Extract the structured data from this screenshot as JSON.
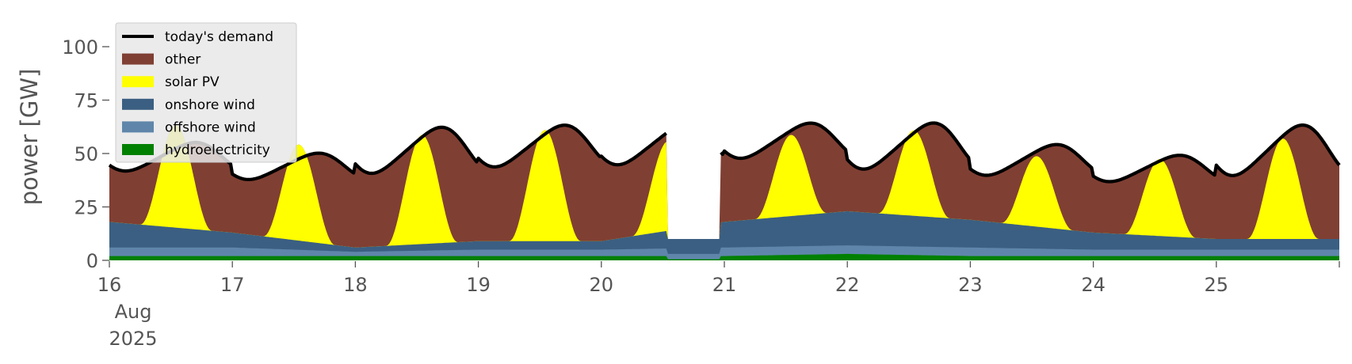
{
  "chart_data": {
    "type": "area",
    "title": "",
    "xlabel": "",
    "ylabel": "power [GW]",
    "ylim": [
      0,
      120
    ],
    "xlim_days": [
      16,
      26
    ],
    "x_unit": "date (Aug 2025), fractional day",
    "yticks": [
      0,
      25,
      50,
      75,
      100
    ],
    "ytick_labels": [
      "0",
      "25",
      "50",
      "75",
      "100"
    ],
    "xticks": [
      16,
      17,
      18,
      19,
      20,
      21,
      22,
      23,
      24,
      25
    ],
    "xtick_labels": [
      "16",
      "17",
      "18",
      "19",
      "20",
      "21",
      "22",
      "23",
      "24",
      "25"
    ],
    "xtick_first_extra_lines": [
      "Aug",
      "2025"
    ],
    "grid": false,
    "legend_position": "top-left",
    "colors": {
      "demand": "#000000",
      "other": "#803f33",
      "solar": "#ffff00",
      "onshore": "#3b5f82",
      "offshore": "#5f86aa",
      "hydro": "#008000",
      "plot_background": "#ffffff",
      "legend_background": "#e8e8e8"
    },
    "series": [
      {
        "name": "today's demand",
        "type": "line"
      },
      {
        "name": "other",
        "type": "area"
      },
      {
        "name": "solar PV",
        "type": "area"
      },
      {
        "name": "onshore wind",
        "type": "area"
      },
      {
        "name": "offshore wind",
        "type": "area"
      },
      {
        "name": "hydroelectricity",
        "type": "area"
      }
    ],
    "gap": [
      20.53,
      20.97
    ],
    "days": [
      {
        "day": 16,
        "demand_min": 42,
        "demand_max": 55,
        "solar_peak": 48,
        "onshore": 12,
        "offshore": 4,
        "hydro": 2
      },
      {
        "day": 17,
        "demand_min": 38,
        "demand_max": 50,
        "solar_peak": 45,
        "onshore": 7,
        "offshore": 4,
        "hydro": 2
      },
      {
        "day": 18,
        "demand_min": 41,
        "demand_max": 62,
        "solar_peak": 51,
        "onshore": 2,
        "offshore": 2,
        "hydro": 2
      },
      {
        "day": 19,
        "demand_min": 44,
        "demand_max": 63,
        "solar_peak": 52,
        "onshore": 4,
        "offshore": 3,
        "hydro": 2
      },
      {
        "day": 20,
        "demand_min": 45,
        "demand_max": 64,
        "solar_peak": 42,
        "onshore": 4,
        "offshore": 3,
        "hydro": 2
      },
      {
        "day": 21,
        "demand_min": 48,
        "demand_max": 64,
        "solar_peak": 38,
        "onshore": 12,
        "offshore": 4,
        "hydro": 2
      },
      {
        "day": 22,
        "demand_min": 43,
        "demand_max": 64,
        "solar_peak": 40,
        "onshore": 16,
        "offshore": 4,
        "hydro": 3
      },
      {
        "day": 23,
        "demand_min": 40,
        "demand_max": 54,
        "solar_peak": 33,
        "onshore": 13,
        "offshore": 4,
        "hydro": 2
      },
      {
        "day": 24,
        "demand_min": 37,
        "demand_max": 49,
        "solar_peak": 36,
        "onshore": 8,
        "offshore": 3,
        "hydro": 2
      },
      {
        "day": 25,
        "demand_min": 40,
        "demand_max": 63,
        "solar_peak": 47,
        "onshore": 5,
        "offshore": 3,
        "hydro": 2
      }
    ]
  }
}
